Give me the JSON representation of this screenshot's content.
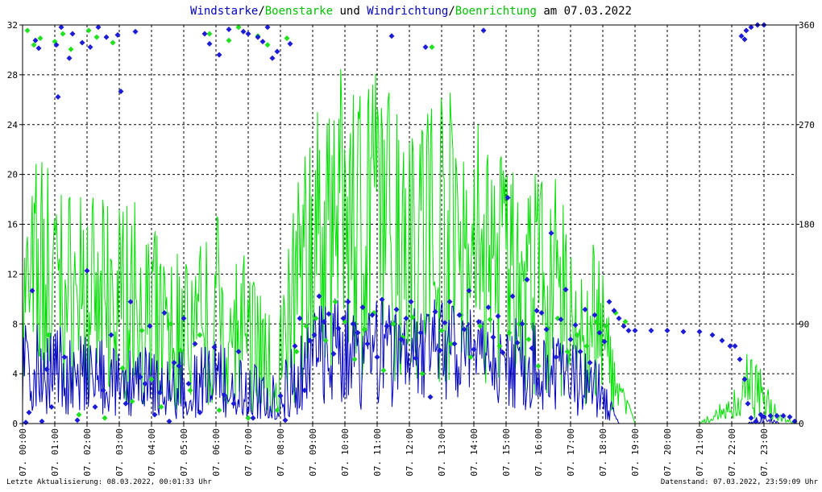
{
  "chart_data": {
    "type": "line",
    "title_parts": [
      {
        "text": "Windstarke",
        "color": "#0000c0"
      },
      {
        "text": "/",
        "color": "#000000"
      },
      {
        "text": "Boenstarke",
        "color": "#00c000"
      },
      {
        "text": " und ",
        "color": "#000000"
      },
      {
        "text": "Windrichtung",
        "color": "#0000c0"
      },
      {
        "text": "/",
        "color": "#000000"
      },
      {
        "text": "Boenrichtung",
        "color": "#00c000"
      },
      {
        "text": " am 07.03.2022",
        "color": "#000000"
      }
    ],
    "y_left": {
      "min": 0,
      "max": 32,
      "ticks": [
        "0",
        "4",
        "8",
        "12",
        "16",
        "20",
        "24",
        "28",
        "32"
      ]
    },
    "y_right": {
      "min": 0,
      "max": 360,
      "ticks": [
        "0",
        "90",
        "180",
        "270",
        "360"
      ]
    },
    "x_ticks": [
      "07. 00:00",
      "07. 01:00",
      "07. 02:00",
      "07. 03:00",
      "07. 04:00",
      "07. 05:00",
      "07. 06:00",
      "07. 07:00",
      "07. 08:00",
      "07. 09:00",
      "07. 10:00",
      "07. 11:00",
      "07. 12:00",
      "07. 13:00",
      "07. 14:00",
      "07. 15:00",
      "07. 16:00",
      "07. 17:00",
      "07. 18:00",
      "07. 19:00",
      "07. 20:00",
      "07. 21:00",
      "07. 22:00",
      "07. 23:00"
    ],
    "hours": 24,
    "grid": true,
    "colors": {
      "wind": "#0000c0",
      "gust": "#00e000",
      "dir": "#1c1cd8",
      "gustdir": "#20e020",
      "grid": "#000000",
      "axis": "#000000",
      "marker": "#c00000"
    },
    "wind_speed": {
      "name": "Windstarke",
      "hours": [
        0,
        0.5,
        1,
        1.5,
        2,
        2.5,
        3,
        3.5,
        4,
        4.5,
        5,
        5.5,
        6,
        6.5,
        7,
        7.5,
        8,
        8.5,
        9,
        9.5,
        10,
        10.5,
        11,
        11.5,
        12,
        12.5,
        13,
        13.5,
        14,
        14.5,
        15,
        15.5,
        16,
        16.5,
        17,
        17.5,
        18,
        18.3,
        18.5,
        19,
        20,
        21,
        22,
        22.5,
        23,
        23.5,
        24
      ],
      "avg": [
        3.5,
        3.8,
        3.4,
        3.0,
        2.6,
        2.4,
        2.2,
        2.6,
        2.0,
        1.8,
        1.8,
        2.0,
        2.2,
        2.0,
        1.5,
        1.3,
        1.2,
        2.5,
        4.5,
        5.0,
        5.5,
        5.5,
        5.8,
        6.0,
        5.8,
        5.5,
        5.5,
        5.2,
        5.2,
        5.0,
        4.8,
        4.6,
        4.5,
        4.0,
        3.2,
        2.6,
        1.8,
        0.8,
        0,
        0,
        0,
        0,
        0,
        0,
        0.2,
        0,
        0
      ],
      "max": [
        8,
        8.5,
        8,
        7.5,
        7,
        7,
        6,
        6.5,
        6,
        6,
        6,
        6.5,
        7,
        6,
        5,
        4.5,
        4.5,
        7,
        9.5,
        10,
        10.5,
        10.5,
        11,
        11,
        10.5,
        10,
        10,
        9.5,
        9.5,
        9,
        9,
        8.5,
        8.5,
        8,
        7,
        6,
        4.5,
        2,
        0,
        0,
        0,
        0,
        0,
        0,
        1,
        0,
        0
      ]
    },
    "gust_speed": {
      "name": "Boenstarke",
      "hours": [
        0,
        0.5,
        1,
        1.5,
        2,
        2.5,
        3,
        3.5,
        4,
        4.5,
        5,
        5.5,
        6,
        6.5,
        7,
        7.5,
        8,
        8.5,
        9,
        9.5,
        10,
        10.5,
        11,
        11.5,
        12,
        12.5,
        13,
        13.5,
        14,
        14.5,
        15,
        15.5,
        16,
        16.5,
        17,
        17.5,
        18,
        18.3,
        18.5,
        19,
        20,
        21,
        22,
        22.5,
        23,
        23.5,
        24
      ],
      "avg": [
        9,
        11,
        10,
        9,
        8,
        8,
        8,
        9,
        6,
        5,
        5,
        6,
        7,
        6,
        4,
        3.5,
        3,
        8,
        14,
        16,
        17,
        17,
        16,
        16,
        16,
        15,
        15,
        14,
        13,
        13,
        12,
        11,
        11,
        10,
        8,
        6,
        5,
        3,
        2.5,
        1,
        0,
        0,
        1,
        2,
        2,
        0.5,
        0
      ],
      "max": [
        16,
        23,
        20,
        19,
        19,
        18,
        18,
        18,
        16,
        14,
        15,
        15,
        17,
        16,
        13,
        12,
        11,
        19,
        25,
        27,
        29,
        28,
        29,
        27,
        26,
        27,
        28,
        26,
        25,
        23,
        23,
        21,
        21,
        20,
        18,
        17,
        12,
        8,
        4,
        0,
        0,
        0,
        2.5,
        6,
        4,
        1,
        0
      ]
    },
    "wind_dir": {
      "name": "Windrichtung",
      "points": [
        [
          0.1,
          1
        ],
        [
          0.2,
          10
        ],
        [
          0.3,
          120
        ],
        [
          0.4,
          346
        ],
        [
          0.5,
          339
        ],
        [
          0.6,
          2
        ],
        [
          0.75,
          49
        ],
        [
          0.9,
          15
        ],
        [
          1.05,
          342
        ],
        [
          1.1,
          295
        ],
        [
          1.2,
          358
        ],
        [
          1.3,
          60
        ],
        [
          1.45,
          330
        ],
        [
          1.55,
          352
        ],
        [
          1.7,
          3
        ],
        [
          1.85,
          344
        ],
        [
          2.0,
          138
        ],
        [
          2.1,
          340
        ],
        [
          2.25,
          15
        ],
        [
          2.35,
          358
        ],
        [
          2.5,
          30
        ],
        [
          2.6,
          349
        ],
        [
          2.75,
          80
        ],
        [
          2.95,
          351
        ],
        [
          3.05,
          300
        ],
        [
          3.2,
          18
        ],
        [
          3.35,
          110
        ],
        [
          3.5,
          354
        ],
        [
          3.65,
          42
        ],
        [
          3.8,
          36
        ],
        [
          3.95,
          88
        ],
        [
          4.1,
          8
        ],
        [
          4.25,
          28
        ],
        [
          4.4,
          100
        ],
        [
          4.55,
          2
        ],
        [
          4.7,
          55
        ],
        [
          4.85,
          52
        ],
        [
          5.0,
          95
        ],
        [
          5.15,
          36
        ],
        [
          5.35,
          72
        ],
        [
          5.5,
          10
        ],
        [
          5.65,
          352
        ],
        [
          5.8,
          343
        ],
        [
          5.95,
          69
        ],
        [
          6.1,
          333
        ],
        [
          6.25,
          26
        ],
        [
          6.4,
          356
        ],
        [
          6.55,
          18
        ],
        [
          6.7,
          65
        ],
        [
          6.85,
          354
        ],
        [
          7.0,
          352
        ],
        [
          7.15,
          5
        ],
        [
          7.3,
          349
        ],
        [
          7.45,
          345
        ],
        [
          7.6,
          358
        ],
        [
          7.75,
          330
        ],
        [
          7.9,
          336
        ],
        [
          8.0,
          25
        ],
        [
          8.15,
          3
        ],
        [
          8.3,
          343
        ],
        [
          8.45,
          70
        ],
        [
          8.6,
          95
        ],
        [
          8.75,
          30
        ],
        [
          8.9,
          75
        ],
        [
          9.05,
          80
        ],
        [
          9.2,
          115
        ],
        [
          9.35,
          92
        ],
        [
          9.5,
          99
        ],
        [
          9.65,
          63
        ],
        [
          9.8,
          86
        ],
        [
          9.95,
          95
        ],
        [
          10.1,
          110
        ],
        [
          10.25,
          90
        ],
        [
          10.4,
          82
        ],
        [
          10.55,
          105
        ],
        [
          10.7,
          72
        ],
        [
          10.85,
          98
        ],
        [
          11.0,
          60
        ],
        [
          11.15,
          112
        ],
        [
          11.3,
          88
        ],
        [
          11.45,
          350
        ],
        [
          11.6,
          103
        ],
        [
          11.75,
          76
        ],
        [
          11.9,
          95
        ],
        [
          12.05,
          110
        ],
        [
          12.2,
          59
        ],
        [
          12.35,
          82
        ],
        [
          12.5,
          340
        ],
        [
          12.65,
          24
        ],
        [
          12.8,
          101
        ],
        [
          12.95,
          66
        ],
        [
          13.1,
          91
        ],
        [
          13.25,
          110
        ],
        [
          13.4,
          72
        ],
        [
          13.55,
          98
        ],
        [
          13.7,
          85
        ],
        [
          13.85,
          120
        ],
        [
          14.0,
          67
        ],
        [
          14.15,
          92
        ],
        [
          14.3,
          355
        ],
        [
          14.45,
          105
        ],
        [
          14.6,
          78
        ],
        [
          14.75,
          97
        ],
        [
          14.9,
          64
        ],
        [
          15.05,
          204
        ],
        [
          15.2,
          115
        ],
        [
          15.35,
          73
        ],
        [
          15.5,
          90
        ],
        [
          15.65,
          130
        ],
        [
          15.8,
          68
        ],
        [
          15.95,
          102
        ],
        [
          16.1,
          100
        ],
        [
          16.25,
          85
        ],
        [
          16.4,
          172
        ],
        [
          16.55,
          60
        ],
        [
          16.7,
          94
        ],
        [
          16.85,
          121
        ],
        [
          17.0,
          76
        ],
        [
          17.15,
          89
        ],
        [
          17.3,
          65
        ],
        [
          17.45,
          103
        ],
        [
          17.6,
          55
        ],
        [
          17.75,
          98
        ],
        [
          17.9,
          82
        ],
        [
          18.05,
          74
        ],
        [
          18.2,
          110
        ],
        [
          18.35,
          102
        ],
        [
          18.5,
          95
        ],
        [
          18.65,
          88
        ],
        [
          18.8,
          84
        ],
        [
          19.0,
          84
        ],
        [
          19.5,
          84
        ],
        [
          20.0,
          84
        ],
        [
          20.5,
          83
        ],
        [
          21.0,
          83
        ],
        [
          21.4,
          80
        ],
        [
          21.7,
          75
        ],
        [
          21.95,
          70
        ],
        [
          22.1,
          70
        ],
        [
          22.25,
          58
        ],
        [
          22.4,
          40
        ],
        [
          22.5,
          18
        ],
        [
          22.6,
          5
        ],
        [
          22.75,
          2
        ],
        [
          22.9,
          8
        ],
        [
          23.0,
          6
        ],
        [
          23.2,
          7
        ],
        [
          23.4,
          7
        ],
        [
          23.6,
          7
        ],
        [
          23.8,
          6
        ],
        [
          23.95,
          2
        ],
        [
          22.3,
          350
        ],
        [
          22.45,
          355
        ],
        [
          22.6,
          358
        ],
        [
          22.8,
          360
        ],
        [
          23.0,
          360
        ],
        [
          22.4,
          347
        ]
      ]
    },
    "gust_dir": {
      "name": "Boenrichtung",
      "points": [
        [
          0.15,
          355
        ],
        [
          0.35,
          342
        ],
        [
          0.55,
          348
        ],
        [
          0.8,
          80
        ],
        [
          1.0,
          345
        ],
        [
          1.25,
          352
        ],
        [
          1.5,
          338
        ],
        [
          1.75,
          8
        ],
        [
          2.05,
          355
        ],
        [
          2.3,
          349
        ],
        [
          2.55,
          5
        ],
        [
          2.8,
          344
        ],
        [
          3.1,
          50
        ],
        [
          3.4,
          20
        ],
        [
          3.7,
          84
        ],
        [
          4.0,
          40
        ],
        [
          4.3,
          15
        ],
        [
          4.6,
          90
        ],
        [
          4.9,
          66
        ],
        [
          5.2,
          30
        ],
        [
          5.5,
          80
        ],
        [
          5.8,
          352
        ],
        [
          6.1,
          12
        ],
        [
          6.4,
          346
        ],
        [
          6.7,
          358
        ],
        [
          7.0,
          5
        ],
        [
          7.3,
          350
        ],
        [
          7.6,
          342
        ],
        [
          7.9,
          12
        ],
        [
          8.2,
          348
        ],
        [
          8.5,
          65
        ],
        [
          8.8,
          88
        ],
        [
          9.1,
          95
        ],
        [
          9.4,
          75
        ],
        [
          9.7,
          110
        ],
        [
          10.0,
          92
        ],
        [
          10.3,
          58
        ],
        [
          10.6,
          85
        ],
        [
          10.9,
          100
        ],
        [
          11.2,
          48
        ],
        [
          11.5,
          90
        ],
        [
          11.8,
          78
        ],
        [
          12.1,
          96
        ],
        [
          12.4,
          45
        ],
        [
          12.7,
          340
        ],
        [
          13.0,
          84
        ],
        [
          13.3,
          72
        ],
        [
          13.6,
          98
        ],
        [
          13.9,
          60
        ],
        [
          14.2,
          88
        ],
        [
          14.5,
          94
        ],
        [
          14.8,
          70
        ],
        [
          15.1,
          82
        ],
        [
          15.4,
          90
        ],
        [
          15.7,
          76
        ],
        [
          16.0,
          52
        ],
        [
          16.3,
          86
        ],
        [
          16.6,
          95
        ],
        [
          16.9,
          65
        ],
        [
          17.2,
          80
        ],
        [
          17.5,
          70
        ],
        [
          17.8,
          92
        ],
        [
          18.1,
          88
        ],
        [
          18.4,
          100
        ],
        [
          18.7,
          92
        ]
      ]
    }
  },
  "footer": {
    "left": "Letzte Aktualisierung: 08.03.2022, 00:01:33 Uhr",
    "right": "Datenstand: 07.03.2022, 23:59:09 Uhr"
  }
}
